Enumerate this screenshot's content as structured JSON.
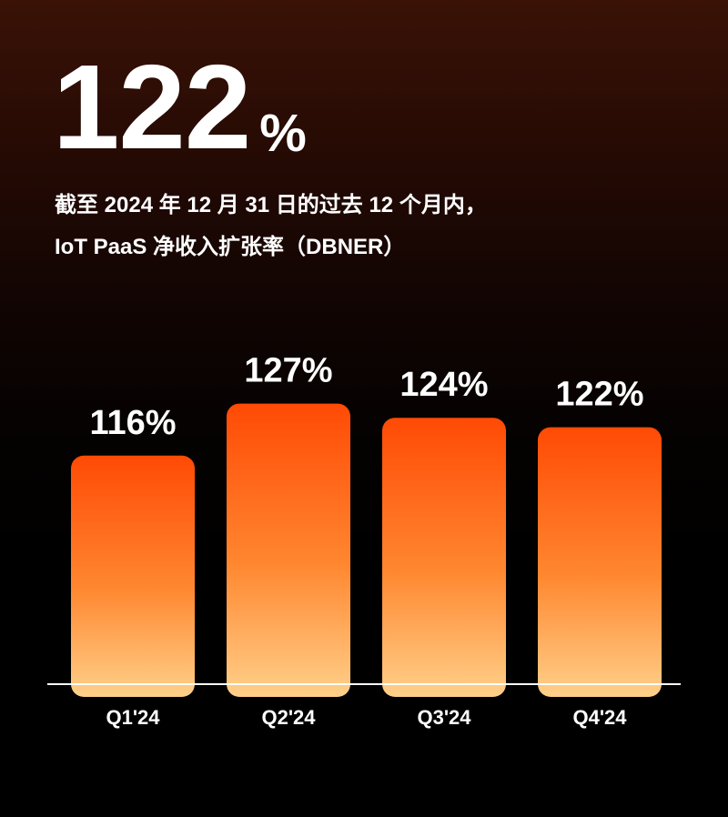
{
  "header": {
    "headline_value": "122",
    "headline_unit": "%",
    "subtitle_line_1": "截至 2024 年 12 月 31 日的过去 12 个月内，",
    "subtitle_line_2": "IoT PaaS 净收入扩张率（DBNER）"
  },
  "colors": {
    "bar_top": "#ff4a05",
    "bar_mid": "#ff8730",
    "bar_bottom": "#ffd08a",
    "axis": "#ffffff",
    "text": "#ffffff"
  },
  "chart_data": {
    "type": "bar",
    "categories": [
      "Q1'24",
      "Q2'24",
      "Q3'24",
      "Q4'24"
    ],
    "values": [
      116,
      127,
      124,
      122
    ],
    "data_labels": [
      "116%",
      "127%",
      "124%",
      "122%"
    ],
    "title": "",
    "xlabel": "",
    "ylabel": "",
    "ylim": [
      0,
      135
    ],
    "grid": false,
    "legend": "none"
  }
}
